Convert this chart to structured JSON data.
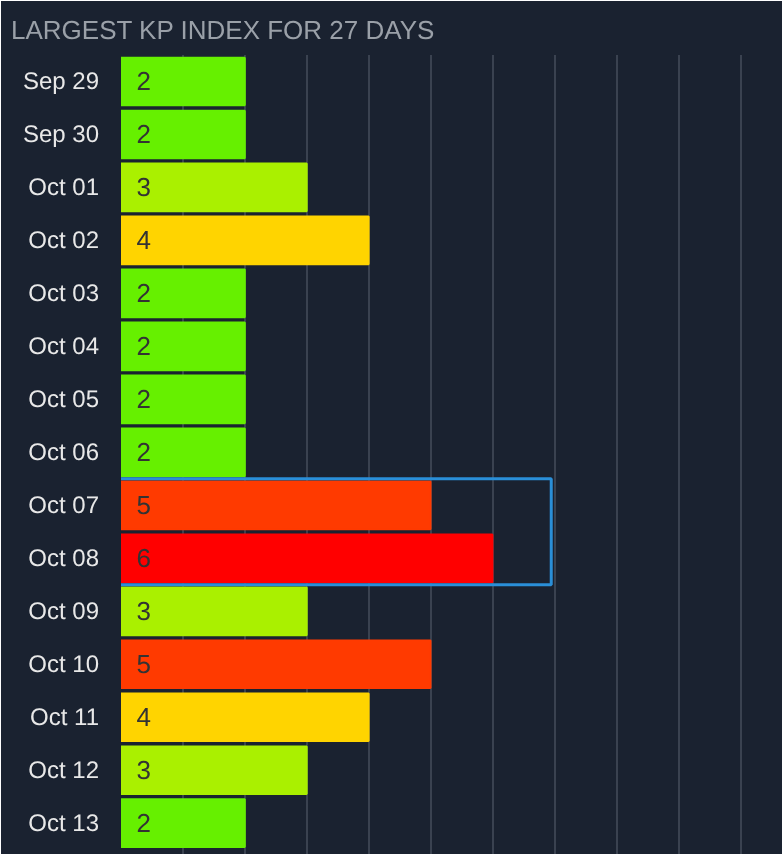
{
  "chart_data": {
    "type": "bar",
    "orientation": "horizontal",
    "title": "LARGEST KP INDEX FOR 27 DAYS",
    "categories": [
      "Sep 29",
      "Sep 30",
      "Oct 01",
      "Oct 02",
      "Oct 03",
      "Oct 04",
      "Oct 05",
      "Oct 06",
      "Oct 07",
      "Oct 08",
      "Oct 09",
      "Oct 10",
      "Oct 11",
      "Oct 12",
      "Oct 13"
    ],
    "values": [
      2,
      2,
      3,
      4,
      2,
      2,
      2,
      2,
      5,
      6,
      3,
      5,
      4,
      3,
      2
    ],
    "colors": [
      "#66f000",
      "#66f000",
      "#aaf000",
      "#ffd400",
      "#66f000",
      "#66f000",
      "#66f000",
      "#66f000",
      "#ff3a00",
      "#ff0000",
      "#aaf000",
      "#ff3a00",
      "#ffd400",
      "#aaf000",
      "#66f000"
    ],
    "xlim": [
      0,
      10.5
    ],
    "xticks": [
      {
        "value": 1,
        "label": null
      },
      {
        "value": 2,
        "label": null
      },
      {
        "value": 3,
        "label": null
      },
      {
        "value": 4,
        "label": null
      },
      {
        "value": 5,
        "label": null
      },
      {
        "value": 6,
        "label": null
      },
      {
        "value": 7,
        "label": null
      },
      {
        "value": 8,
        "label": null
      },
      {
        "value": 9,
        "label": null
      },
      {
        "value": 10,
        "label": null
      }
    ],
    "grid": "x",
    "tick_labels": "y",
    "data_labels": true
  }
}
